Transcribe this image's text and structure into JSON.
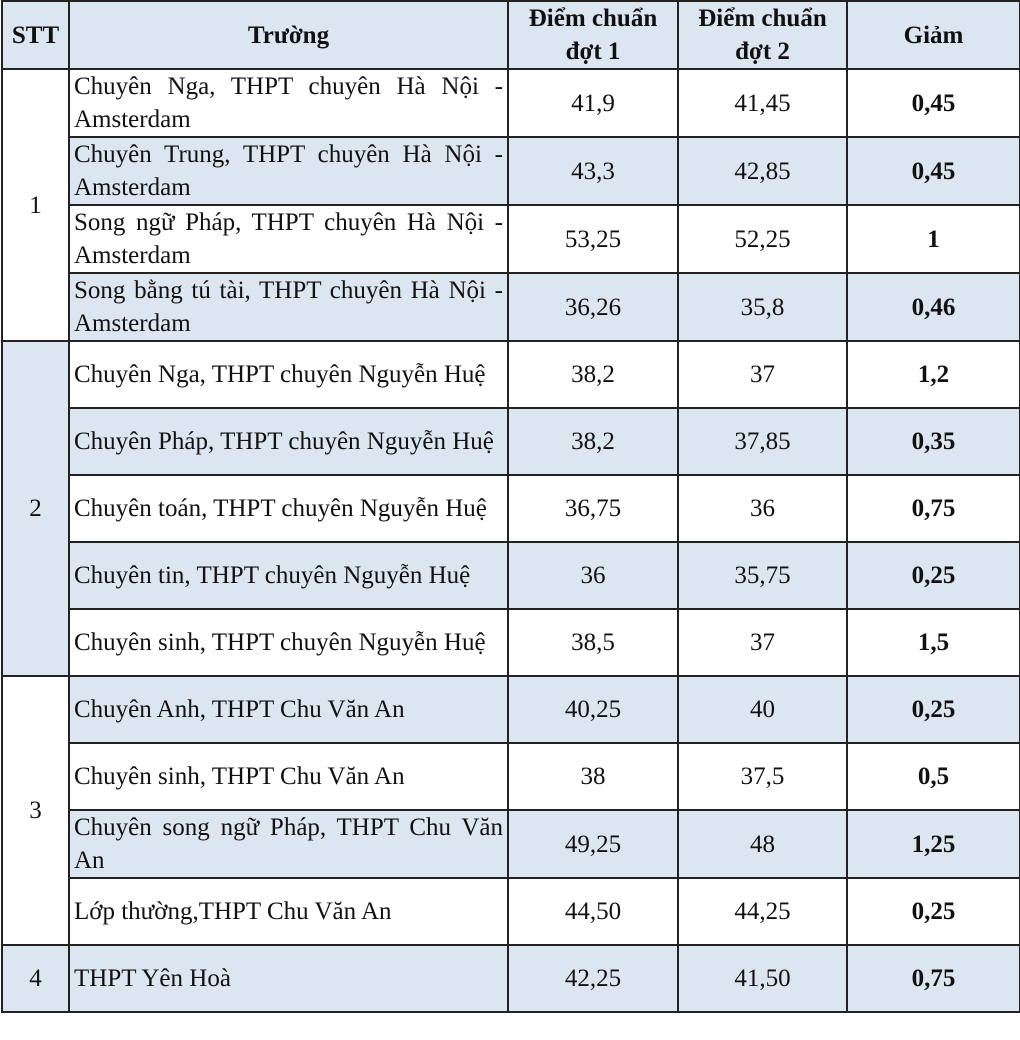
{
  "header": {
    "stt": "STT",
    "school": "Trường",
    "round1": "Điểm chuẩn đợt 1",
    "round2": "Điểm chuẩn đợt 2",
    "decrease": "Giảm"
  },
  "table": {
    "groups": [
      {
        "stt": "1",
        "rows": [
          [
            "Chuyên Nga, THPT chuyên Hà Nội - Amsterdam",
            "41,9",
            "41,45",
            "0,45"
          ],
          [
            "Chuyên Trung, THPT chuyên Hà Nội - Amsterdam",
            "43,3",
            "42,85",
            "0,45"
          ],
          [
            "Song ngữ Pháp, THPT chuyên Hà Nội - Amsterdam",
            "53,25",
            "52,25",
            "1"
          ],
          [
            "Song bằng tú tài, THPT chuyên Hà Nội - Amsterdam",
            "36,26",
            "35,8",
            "0,46"
          ]
        ]
      },
      {
        "stt": "2",
        "rows": [
          [
            "Chuyên Nga, THPT chuyên Nguyễn Huệ",
            "38,2",
            "37",
            "1,2"
          ],
          [
            "Chuyên Pháp, THPT chuyên Nguyễn Huệ",
            "38,2",
            "37,85",
            "0,35"
          ],
          [
            "Chuyên toán, THPT chuyên Nguyễn Huệ",
            "36,75",
            "36",
            "0,75"
          ],
          [
            "Chuyên tin, THPT chuyên Nguyễn Huệ",
            "36",
            "35,75",
            "0,25"
          ],
          [
            "Chuyên sinh, THPT chuyên Nguyễn Huệ",
            "38,5",
            "37",
            "1,5"
          ]
        ]
      },
      {
        "stt": "3",
        "rows": [
          [
            "Chuyên Anh, THPT Chu Văn An",
            "40,25",
            "40",
            "0,25"
          ],
          [
            "Chuyên sinh, THPT Chu Văn An",
            "38",
            "37,5",
            "0,5"
          ],
          [
            "Chuyên song ngữ Pháp, THPT Chu Văn An",
            "49,25",
            "48",
            "1,25"
          ],
          [
            "Lớp thường,THPT Chu Văn An",
            "44,50",
            "44,25",
            "0,25"
          ]
        ]
      },
      {
        "stt": "4",
        "rows": [
          [
            "THPT Yên Hoà",
            "42,25",
            "41,50",
            "0,75"
          ]
        ]
      }
    ]
  }
}
